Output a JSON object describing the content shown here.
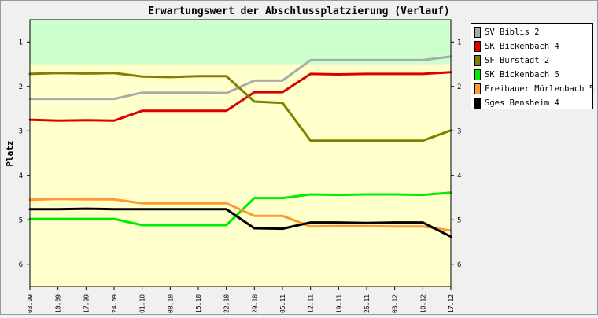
{
  "chart_data": {
    "type": "line",
    "title": "Erwartungswert der Abschlussplatzierung (Verlauf)",
    "ylabel": "Platz",
    "xlabel": "",
    "categories": [
      "03.09",
      "10.09",
      "17.09",
      "24.09",
      "01.10",
      "08.10",
      "15.10",
      "22.10",
      "29.10",
      "05.11",
      "12.11",
      "19.11",
      "26.11",
      "03.12",
      "10.12",
      "17.12"
    ],
    "y_ticks": [
      1,
      2,
      3,
      4,
      5,
      6
    ],
    "ylim": [
      0.5,
      6.5
    ],
    "y_inverted": true,
    "highlight_band": {
      "from": 0.5,
      "to": 1.5,
      "color": "#ccffcc"
    },
    "background_color": "#ffffcc",
    "grid": false,
    "legend_position": "right",
    "series": [
      {
        "name": "SV Biblis 2",
        "color": "#aaaaaa",
        "values": [
          2.28,
          2.28,
          2.28,
          2.28,
          2.14,
          2.14,
          2.14,
          2.15,
          1.87,
          1.87,
          1.41,
          1.41,
          1.41,
          1.41,
          1.41,
          1.33
        ]
      },
      {
        "name": "SK Bickenbach 4",
        "color": "#dd0000",
        "values": [
          2.75,
          2.77,
          2.76,
          2.77,
          2.55,
          2.55,
          2.55,
          2.55,
          2.13,
          2.13,
          1.72,
          1.73,
          1.72,
          1.72,
          1.72,
          1.68
        ]
      },
      {
        "name": "SF Bürstadt 2",
        "color": "#808000",
        "values": [
          1.72,
          1.7,
          1.71,
          1.7,
          1.78,
          1.79,
          1.77,
          1.77,
          2.34,
          2.37,
          3.22,
          3.22,
          3.22,
          3.22,
          3.22,
          2.99
        ]
      },
      {
        "name": "SK Bickenbach 5",
        "color": "#00ee00",
        "values": [
          4.98,
          4.98,
          4.98,
          4.98,
          5.12,
          5.12,
          5.12,
          5.12,
          4.51,
          4.51,
          4.43,
          4.44,
          4.43,
          4.43,
          4.44,
          4.39
        ]
      },
      {
        "name": "Freibauer Mörlenbach 5",
        "color": "#ff9933",
        "values": [
          4.55,
          4.53,
          4.54,
          4.54,
          4.63,
          4.63,
          4.63,
          4.63,
          4.91,
          4.91,
          5.15,
          5.14,
          5.14,
          5.15,
          5.15,
          5.24
        ]
      },
      {
        "name": "Sges Bensheim 4",
        "color": "#000000",
        "values": [
          4.76,
          4.76,
          4.75,
          4.76,
          4.76,
          4.76,
          4.76,
          4.76,
          5.19,
          5.2,
          5.06,
          5.06,
          5.07,
          5.06,
          5.06,
          5.38
        ]
      }
    ]
  }
}
